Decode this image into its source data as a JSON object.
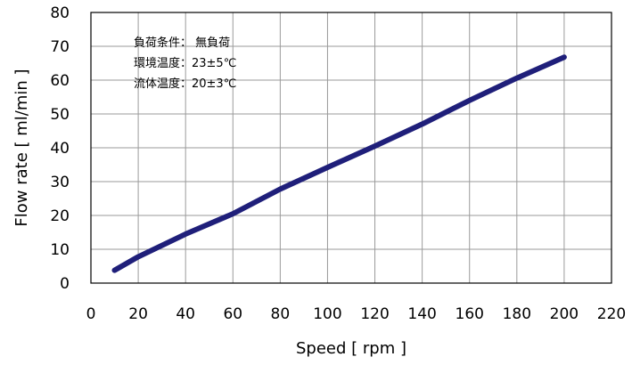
{
  "chart_data": {
    "type": "line",
    "xlabel": "Speed [ rpm ]",
    "ylabel": "Flow rate [ ml/min ]",
    "xlim": [
      0,
      220
    ],
    "ylim": [
      0,
      80
    ],
    "x_ticks": [
      "0",
      "20",
      "40",
      "60",
      "80",
      "100",
      "120",
      "140",
      "160",
      "180",
      "200",
      "220"
    ],
    "y_ticks": [
      "0",
      "10",
      "20",
      "30",
      "40",
      "50",
      "60",
      "70",
      "80"
    ],
    "grid": true,
    "series": [
      {
        "color": "#1f1f7a",
        "x": [
          10,
          20,
          40,
          60,
          80,
          100,
          120,
          140,
          160,
          180,
          200
        ],
        "y": [
          3.8,
          7.8,
          14.5,
          20.5,
          27.8,
          34.2,
          40.5,
          47.0,
          54.0,
          60.6,
          66.8
        ]
      }
    ],
    "annotations": [
      "負荷条件： 無負荷",
      "環境温度：23±5℃",
      "流体温度：20±3℃"
    ]
  }
}
